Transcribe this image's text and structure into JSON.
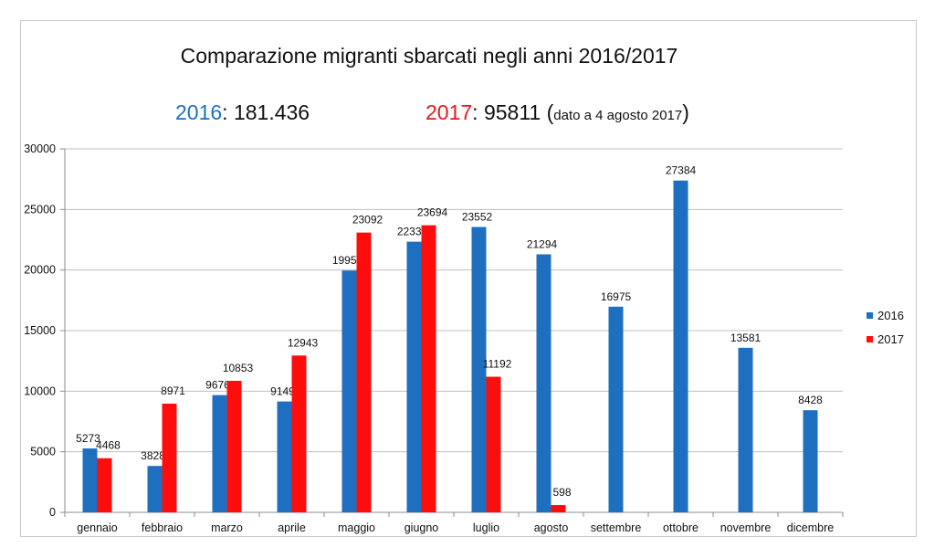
{
  "chart_data": {
    "type": "bar",
    "title": "Comparazione migranti sbarcati negli anni 2016/2017",
    "subtitle": {
      "left": {
        "year": "2016",
        "sep": ":",
        "value": "181.436"
      },
      "right": {
        "year": "2017",
        "sep": ":",
        "value": "95811",
        "note_open": "(",
        "note": "dato a 4 agosto 2017",
        "note_close": ")"
      }
    },
    "categories": [
      "gennaio",
      "febbraio",
      "marzo",
      "aprile",
      "maggio",
      "giugno",
      "luglio",
      "agosto",
      "settembre",
      "ottobre",
      "novembre",
      "dicembre"
    ],
    "series": [
      {
        "name": "2016",
        "color": "#1f6fc1",
        "values": [
          5273,
          3828,
          9676,
          9149,
          19957,
          22339,
          23552,
          21294,
          16975,
          27384,
          13581,
          8428
        ]
      },
      {
        "name": "2017",
        "color": "#ff0d0d",
        "values": [
          4468,
          8971,
          10853,
          12943,
          23092,
          23694,
          11192,
          598,
          null,
          null,
          null,
          null
        ]
      }
    ],
    "ylim": [
      0,
      30000
    ],
    "yticks": [
      "0",
      "5000",
      "10000",
      "15000",
      "20000",
      "25000",
      "30000"
    ],
    "grid": true,
    "legend_position": "right",
    "xlabel": "",
    "ylabel": ""
  }
}
